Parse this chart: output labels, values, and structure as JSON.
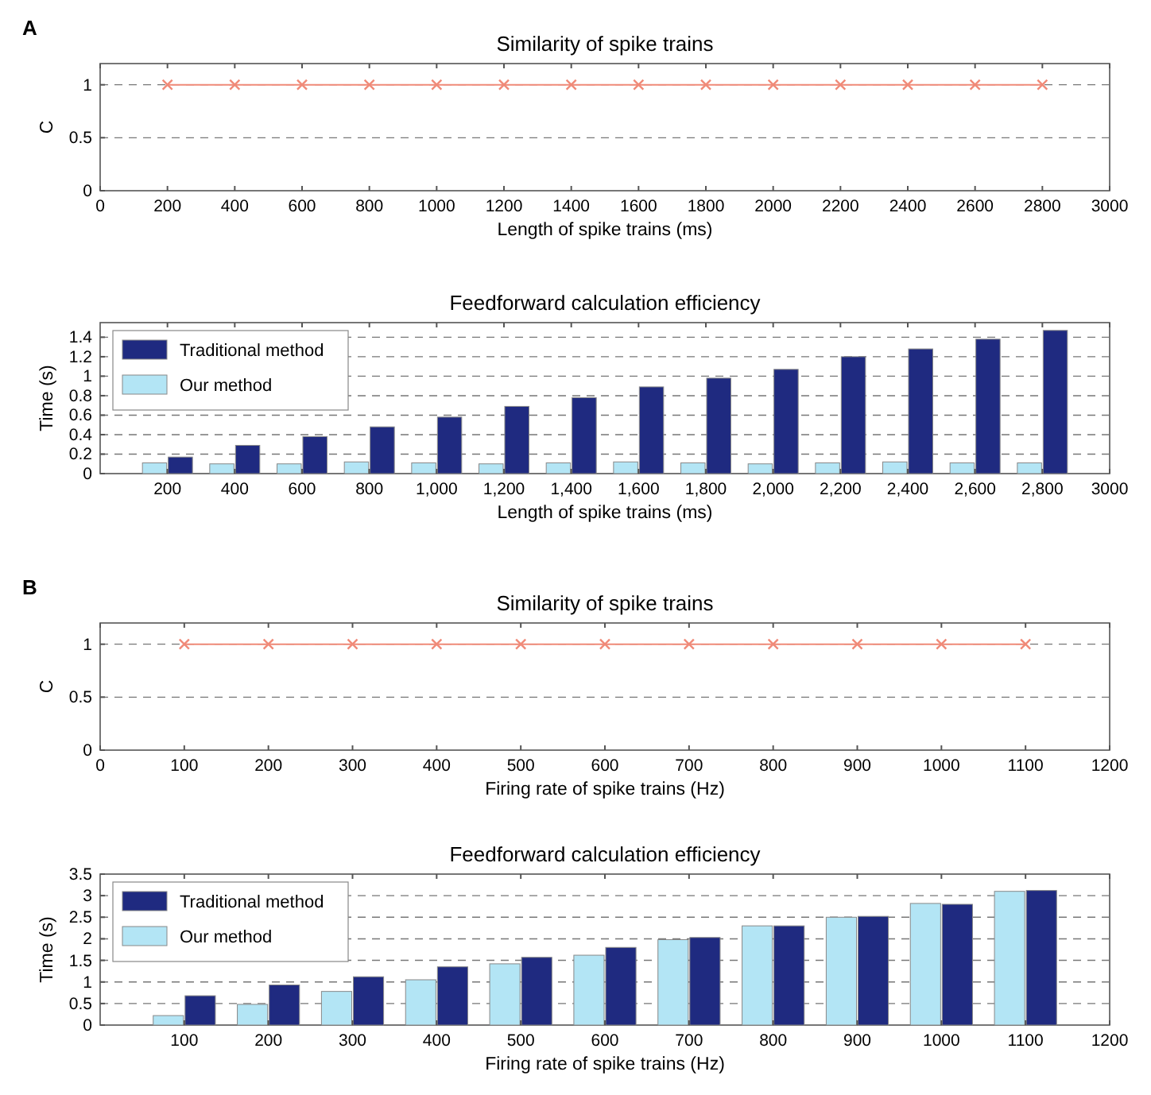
{
  "chart_data": [
    {
      "type": "line",
      "title": "Similarity of spike trains",
      "xlabel": "Length of spike trains (ms)",
      "ylabel": "C",
      "annotations": [
        "A"
      ],
      "x": [
        200,
        400,
        600,
        800,
        1000,
        1200,
        1400,
        1600,
        1800,
        2000,
        2200,
        2400,
        2600,
        2800
      ],
      "series": [
        {
          "color": "#f08a78",
          "values": [
            1,
            1,
            1,
            1,
            1,
            1,
            1,
            1,
            1,
            1,
            1,
            1,
            1,
            1
          ]
        }
      ],
      "marker": "cross",
      "line_style": "solid",
      "xlim": [
        0,
        3000
      ],
      "xticks": [
        0,
        200,
        400,
        600,
        800,
        1000,
        1200,
        1400,
        1600,
        1800,
        2000,
        2200,
        2400,
        2600,
        2800,
        3000
      ],
      "ylim": [
        0,
        1.2
      ],
      "yticks": [
        0,
        0.5,
        1
      ],
      "grid": "y",
      "legend": false
    },
    {
      "type": "bar",
      "title": "Feedforward calculation efficiency",
      "xlabel": "Length of spike trains (ms)",
      "ylabel": "Time (s)",
      "x": [
        200,
        400,
        600,
        800,
        1000,
        1200,
        1400,
        1600,
        1800,
        2000,
        2200,
        2400,
        2600,
        2800
      ],
      "series": [
        {
          "name": "Our method",
          "color": "#b3e5f5",
          "values": [
            0.11,
            0.1,
            0.1,
            0.12,
            0.11,
            0.1,
            0.11,
            0.12,
            0.11,
            0.1,
            0.11,
            0.12,
            0.11,
            0.11
          ]
        },
        {
          "name": "Traditional method",
          "color": "#1f2a80",
          "values": [
            0.17,
            0.29,
            0.38,
            0.48,
            0.58,
            0.69,
            0.78,
            0.89,
            0.98,
            1.07,
            1.2,
            1.28,
            1.38,
            1.47
          ]
        }
      ],
      "xlim": [
        0,
        3000
      ],
      "xticks": [
        {
          "value": 200,
          "label": "200"
        },
        {
          "value": 400,
          "label": "400"
        },
        {
          "value": 600,
          "label": "600"
        },
        {
          "value": 800,
          "label": "800"
        },
        {
          "value": 1000,
          "label": "1,000"
        },
        {
          "value": 1200,
          "label": "1,200"
        },
        {
          "value": 1400,
          "label": "1,400"
        },
        {
          "value": 1600,
          "label": "1,600"
        },
        {
          "value": 1800,
          "label": "1,800"
        },
        {
          "value": 2000,
          "label": "2,000"
        },
        {
          "value": 2200,
          "label": "2,200"
        },
        {
          "value": 2400,
          "label": "2,400"
        },
        {
          "value": 2600,
          "label": "2,600"
        },
        {
          "value": 2800,
          "label": "2,800"
        },
        {
          "value": 3000,
          "label": "3000"
        }
      ],
      "ylim": [
        0,
        1.55
      ],
      "yticks": [
        0,
        0.2,
        0.4,
        0.6,
        0.8,
        1,
        1.2,
        1.4
      ],
      "grid": "y",
      "legend": "top left"
    },
    {
      "type": "line",
      "title": "Similarity of spike trains",
      "xlabel": "Firing rate of spike trains (Hz)",
      "ylabel": "C",
      "annotations": [
        "B"
      ],
      "x": [
        100,
        200,
        300,
        400,
        500,
        600,
        700,
        800,
        900,
        1000,
        1100
      ],
      "series": [
        {
          "color": "#f08a78",
          "values": [
            1,
            1,
            1,
            1,
            1,
            1,
            1,
            1,
            1,
            1,
            1
          ]
        }
      ],
      "marker": "cross",
      "line_style": "solid",
      "xlim": [
        0,
        1200
      ],
      "xticks": [
        0,
        100,
        200,
        300,
        400,
        500,
        600,
        700,
        800,
        900,
        1000,
        1100,
        1200
      ],
      "ylim": [
        0,
        1.2
      ],
      "yticks": [
        0,
        0.5,
        1
      ],
      "grid": "y",
      "legend": false
    },
    {
      "type": "bar",
      "title": "Feedforward calculation efficiency",
      "xlabel": "Firing rate of spike trains (Hz)",
      "ylabel": "Time (s)",
      "x": [
        100,
        200,
        300,
        400,
        500,
        600,
        700,
        800,
        900,
        1000,
        1100
      ],
      "series": [
        {
          "name": "Our method",
          "color": "#b3e5f5",
          "values": [
            0.22,
            0.48,
            0.78,
            1.05,
            1.42,
            1.62,
            1.98,
            2.3,
            2.5,
            2.82,
            3.1
          ]
        },
        {
          "name": "Traditional method",
          "color": "#1f2a80",
          "values": [
            0.68,
            0.93,
            1.12,
            1.35,
            1.57,
            1.8,
            2.03,
            2.3,
            2.52,
            2.8,
            3.12
          ]
        }
      ],
      "xlim": [
        0,
        1200
      ],
      "xticks": [
        100,
        200,
        300,
        400,
        500,
        600,
        700,
        800,
        900,
        1000,
        1100,
        1200
      ],
      "ylim": [
        0,
        3.5
      ],
      "yticks": [
        0,
        0.5,
        1,
        1.5,
        2,
        2.5,
        3,
        3.5
      ],
      "grid": "y",
      "legend": "top left"
    }
  ]
}
